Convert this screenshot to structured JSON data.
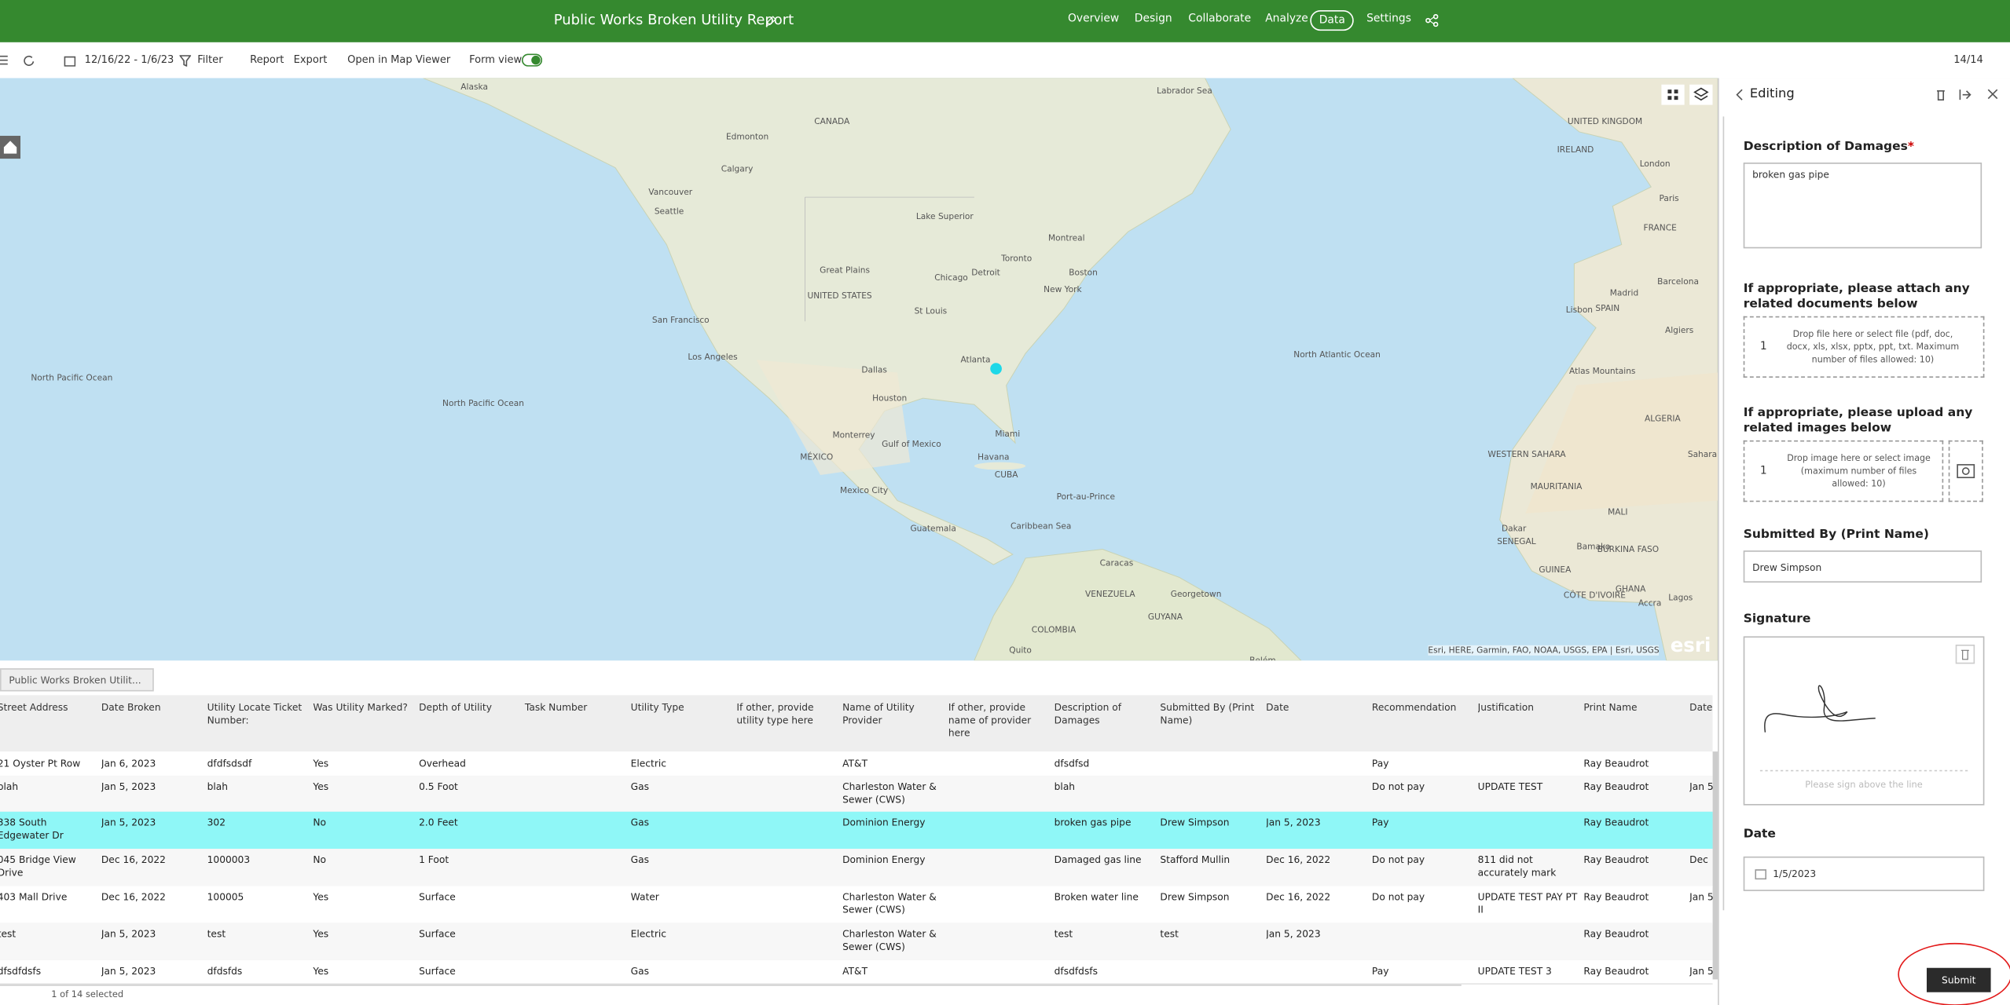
{
  "header": {
    "title": "Public Works Broken Utility Report",
    "nav": [
      {
        "label": "Overview"
      },
      {
        "label": "Design"
      },
      {
        "label": "Collaborate"
      },
      {
        "label": "Analyze"
      },
      {
        "label": "Data",
        "active": true
      },
      {
        "label": "Settings"
      }
    ]
  },
  "toolbar": {
    "date_range": "12/16/22 - 1/6/23",
    "filter": "Filter",
    "report": "Report",
    "export": "Export",
    "open_map": "Open in Map Viewer",
    "form_view": "Form view",
    "count": "14/14"
  },
  "map": {
    "labels": [
      "Alaska",
      "Labrador Sea",
      "CANADA",
      "Edmonton",
      "Calgary",
      "Vancouver",
      "Seattle",
      "Lake Superior",
      "Montreal",
      "Toronto",
      "Detroit",
      "Chicago",
      "Boston",
      "New York",
      "Great Plains",
      "UNITED STATES",
      "St Louis",
      "San Francisco",
      "Los Angeles",
      "Dallas",
      "Atlanta",
      "Houston",
      "Miami",
      "Monterrey",
      "Gulf of Mexico",
      "MÉXICO",
      "Havana",
      "CUBA",
      "Mexico City",
      "Port-au-Prince",
      "Guatemala",
      "Caribbean Sea",
      "Caracas",
      "VENEZUELA",
      "Georgetown",
      "GUYANA",
      "COLOMBIA",
      "Quito",
      "Belém",
      "North Pacific Ocean",
      "North Pacific Ocean",
      "North Atlantic Ocean",
      "UNITED KINGDOM",
      "IRELAND",
      "London",
      "Paris",
      "FRANCE",
      "Madrid",
      "SPAIN",
      "Lisbon",
      "Barcelona",
      "Algiers",
      "Atlas Mountains",
      "ALGERIA",
      "WESTERN SAHARA",
      "MAURITANIA",
      "MALI",
      "Dakar",
      "SENEGAL",
      "Bamako",
      "BURKINA FASO",
      "GUINEA",
      "CÔTE D'IVOIRE",
      "GHANA",
      "Accra",
      "Lagos",
      "Sahara"
    ],
    "attribution": "Esri, HERE, Garmin, FAO, NOAA, USGS, EPA | Esri, USGS",
    "logo": "esri"
  },
  "table": {
    "tab": "Public Works Broken Utilit...",
    "columns": [
      "Street Address",
      "Date Broken",
      "Utility Locate Ticket Number:",
      "Was Utility Marked?",
      "Depth of Utility",
      "Task Number",
      "Utility Type",
      "If other, provide utility type here",
      "Name of Utility Provider",
      "If other, provide name of provider here",
      "Description of Damages",
      "Submitted By (Print Name)",
      "Date",
      "Recommendation",
      "Justification",
      "Print Name",
      "Date"
    ],
    "rows": [
      {
        "cells": [
          "21 Oyster Pt Row",
          "Jan 6, 2023",
          "dfdfsdsdf",
          "Yes",
          "Overhead",
          null,
          "Electric",
          null,
          "AT&T",
          null,
          "dfsdfsd",
          null,
          null,
          "Pay",
          null,
          "Ray Beaudrot",
          null
        ]
      },
      {
        "cells": [
          "blah",
          "Jan 5, 2023",
          "blah",
          "Yes",
          "0.5 Foot",
          null,
          "Gas",
          null,
          "Charleston Water & Sewer (CWS)",
          null,
          "blah",
          null,
          null,
          "Do not pay",
          "UPDATE TEST",
          "Ray Beaudrot",
          "Jan 5"
        ]
      },
      {
        "cells": [
          "338 South Edgewater Dr",
          "Jan 5, 2023",
          "302",
          "No",
          "2.0 Feet",
          null,
          "Gas",
          null,
          "Dominion Energy",
          null,
          "broken gas pipe",
          "Drew Simpson",
          "Jan 5, 2023",
          "Pay",
          null,
          "Ray Beaudrot",
          null
        ],
        "selected": true
      },
      {
        "cells": [
          "045 Bridge View Drive",
          "Dec 16, 2022",
          "1000003",
          "No",
          "1 Foot",
          null,
          "Gas",
          null,
          "Dominion Energy",
          null,
          "Damaged gas line",
          "Stafford Mullin",
          "Dec 16, 2022",
          "Do not pay",
          "811 did not accurately mark",
          "Ray Beaudrot",
          "Dec"
        ]
      },
      {
        "cells": [
          "403 Mall Drive",
          "Dec 16, 2022",
          "100005",
          "Yes",
          "Surface",
          null,
          "Water",
          null,
          "Charleston Water & Sewer (CWS)",
          null,
          "Broken water line",
          "Drew Simpson",
          "Dec 16, 2022",
          "Do not pay",
          "UPDATE TEST PAY PT II",
          "Ray Beaudrot",
          "Jan 5"
        ]
      },
      {
        "cells": [
          "test",
          "Jan 5, 2023",
          "test",
          "Yes",
          "Surface",
          null,
          "Electric",
          null,
          "Charleston Water & Sewer (CWS)",
          null,
          "test",
          "test",
          "Jan 5, 2023",
          null,
          null,
          "Ray Beaudrot",
          null
        ]
      },
      {
        "cells": [
          "dfsdfdsfs",
          "Jan 5, 2023",
          "dfdsfds",
          "Yes",
          "Surface",
          null,
          "Gas",
          null,
          "AT&T",
          null,
          "dfsdfdsfs",
          null,
          null,
          "Pay",
          "UPDATE TEST 3",
          "Ray Beaudrot",
          "Jan 5"
        ]
      }
    ],
    "footer": "1 of 14 selected"
  },
  "panel": {
    "title": "Editing",
    "description": {
      "label": "Description of Damages",
      "required": "*",
      "value": "broken gas pipe"
    },
    "documents": {
      "label": "If appropriate, please attach any related documents below",
      "count": "1",
      "hint": "Drop file here or select file (pdf, doc, docx, xls, xlsx, pptx, ppt, txt. Maximum number of files allowed: 10)"
    },
    "images": {
      "label": "If appropriate, please upload any related images below",
      "count": "1",
      "hint": "Drop image here or select image (maximum number of files allowed: 10)"
    },
    "submitted_by": {
      "label": "Submitted By (Print Name)",
      "value": "Drew Simpson"
    },
    "signature": {
      "label": "Signature",
      "hint": "Please sign above the line"
    },
    "date": {
      "label": "Date",
      "value": "1/5/2023"
    },
    "submit": "Submit"
  }
}
